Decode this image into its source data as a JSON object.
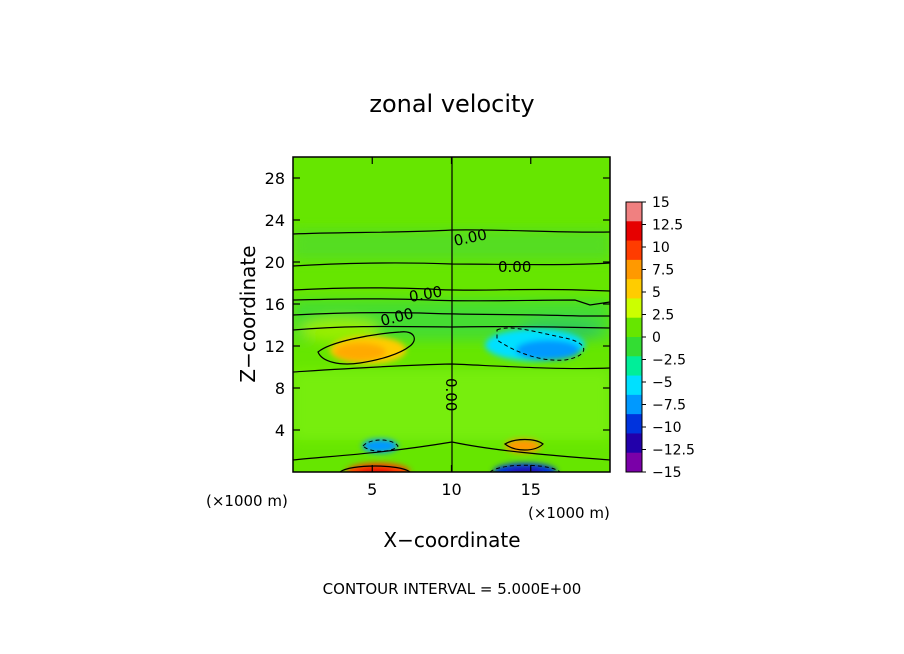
{
  "chart_data": {
    "type": "heatmap",
    "title": "zonal velocity",
    "xlabel": "X−coordinate",
    "ylabel": "Z−coordinate",
    "xlim": [
      0,
      20
    ],
    "ylim": [
      0,
      30
    ],
    "x_ticks": [
      5,
      10,
      15
    ],
    "y_ticks": [
      4,
      8,
      12,
      16,
      20,
      24,
      28
    ],
    "x_units_label": "(×1000 m)",
    "y_units_label": "(×1000 m)",
    "footnote": "CONTOUR INTERVAL = 5.000E+00",
    "colorbar": {
      "levels": [
        15,
        12.5,
        10,
        7.5,
        5,
        2.5,
        0,
        -2.5,
        -5,
        -7.5,
        -10,
        -12.5,
        -15
      ],
      "tick_labels": [
        "15",
        "12.5",
        "10",
        "7.5",
        "5",
        "2.5",
        "0",
        "−2.5",
        "−5",
        "−7.5",
        "−10",
        "−12.5",
        "−15"
      ],
      "colors": [
        "#f08080",
        "#e60000",
        "#ff3c00",
        "#ff9900",
        "#ffcc00",
        "#ccff00",
        "#66e600",
        "#33dd33",
        "#00ee99",
        "#00e0ff",
        "#0099ff",
        "#0033dd",
        "#2200aa",
        "#7a00a8"
      ]
    },
    "contour_interval": 5.0,
    "contour_labels": [
      "0.00",
      "0.00",
      "0.00",
      "0.00",
      "0.00"
    ],
    "background_value": 0.8,
    "features": [
      {
        "kind": "positive",
        "x": 3.8,
        "z": 11.8,
        "value": 8
      },
      {
        "kind": "negative",
        "x": 16.0,
        "z": 11.8,
        "value": -5
      },
      {
        "kind": "negative",
        "x": 5.5,
        "z": 2.5,
        "value": -6
      },
      {
        "kind": "positive",
        "x": 14.8,
        "z": 2.5,
        "value": 7
      },
      {
        "kind": "positive",
        "x": 5.5,
        "z": 0.3,
        "value": 12
      },
      {
        "kind": "negative",
        "x": 14.8,
        "z": 0.3,
        "value": -11
      }
    ]
  }
}
